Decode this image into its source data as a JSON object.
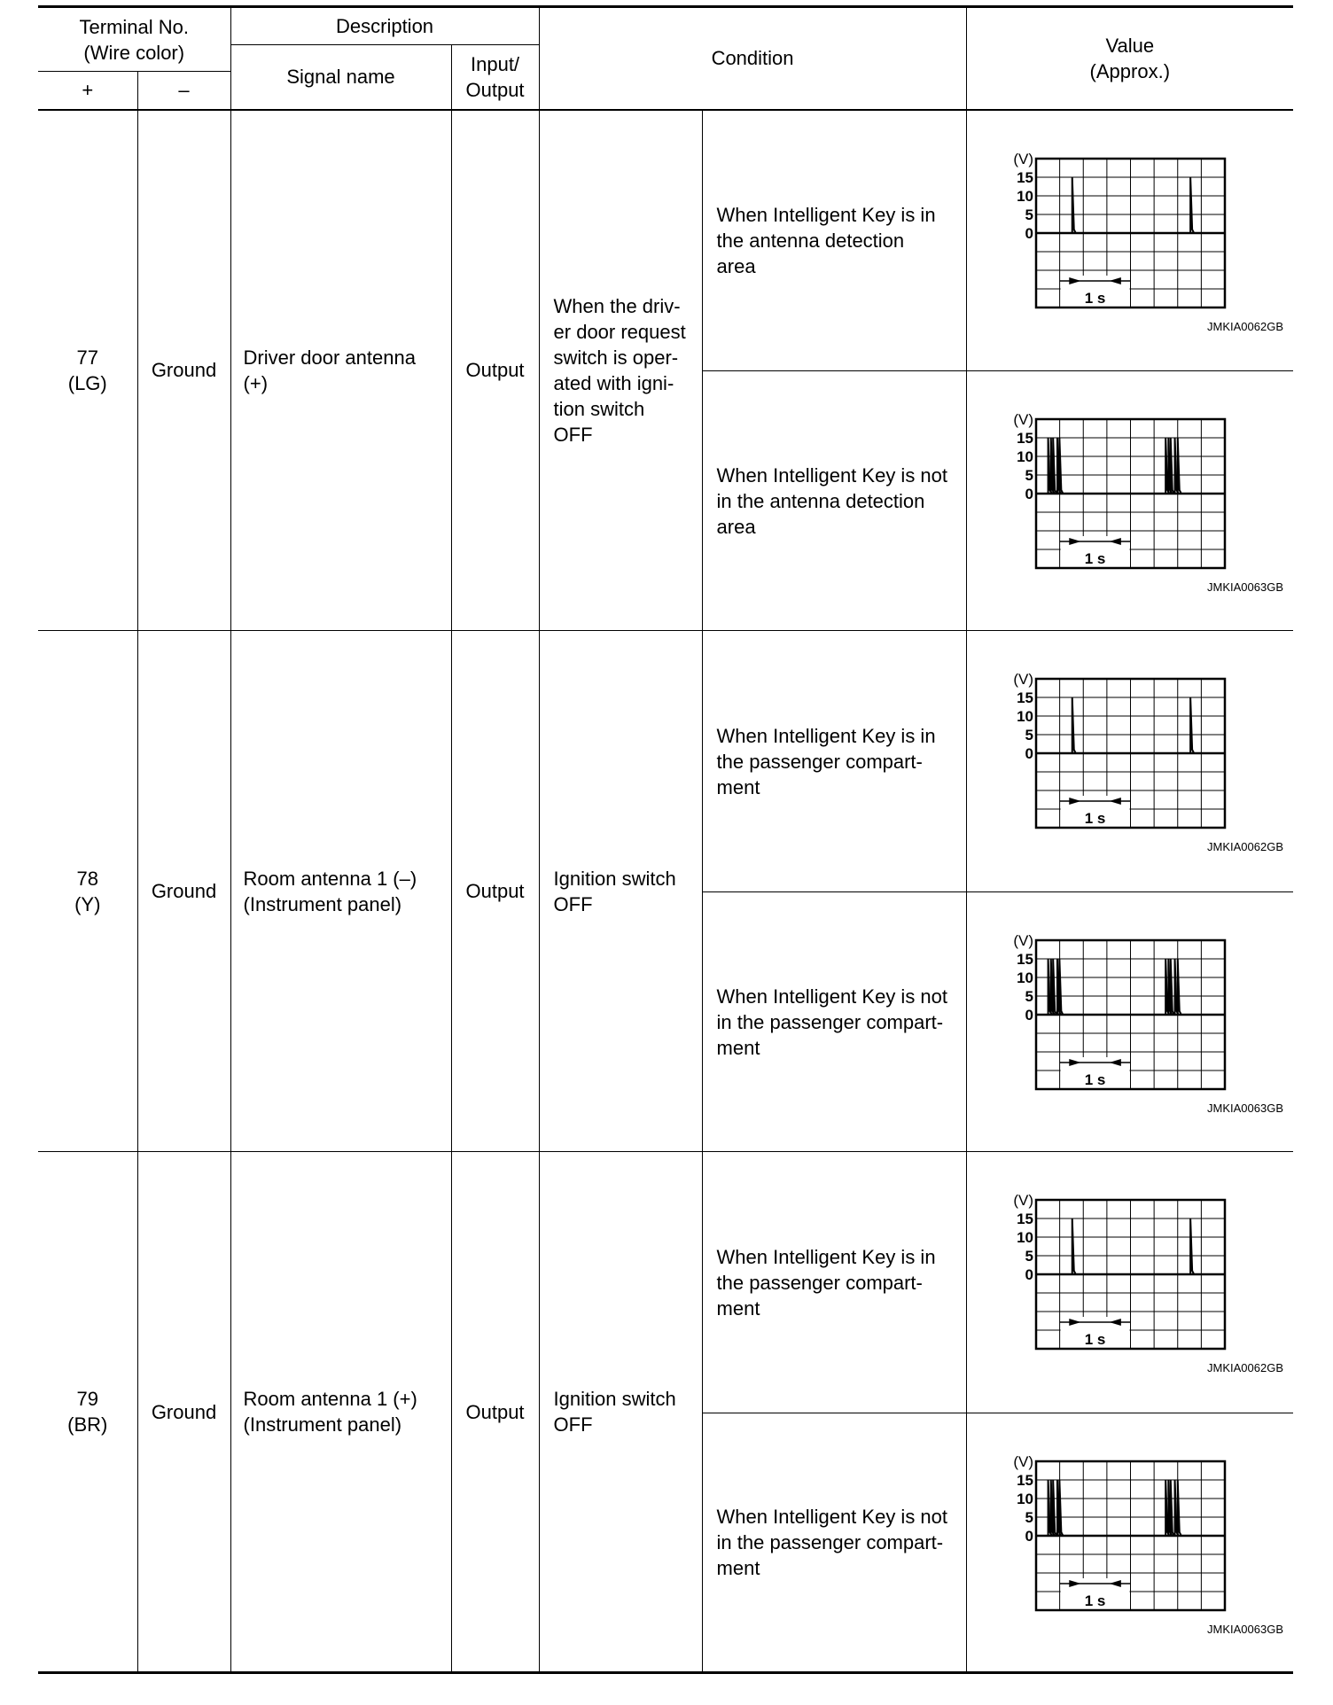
{
  "header": {
    "terminal": "Terminal No.\n(Wire color)",
    "plus": "+",
    "minus": "–",
    "description": "Description",
    "signal_name": "Signal name",
    "io": "Input/\nOutput",
    "condition": "Condition",
    "value": "Value\n(Approx.)"
  },
  "rows": [
    {
      "plus": "77\n(LG)",
      "minus": "Ground",
      "signal": "Driver door antenna\n(+)",
      "io": "Output",
      "condition": "When the driv-\ner door request\nswitch is oper-\nated with igni-\ntion switch\nOFF",
      "subs": [
        {
          "condition": "When Intelligent Key is in\nthe antenna detection\narea",
          "waveform": 0
        },
        {
          "condition": "When Intelligent Key is not\nin the antenna detection\narea",
          "waveform": 1
        }
      ]
    },
    {
      "plus": "78\n(Y)",
      "minus": "Ground",
      "signal": "Room antenna 1 (–)\n(Instrument panel)",
      "io": "Output",
      "condition": "Ignition switch\nOFF",
      "subs": [
        {
          "condition": "When Intelligent Key is in\nthe passenger compart-\nment",
          "waveform": 0
        },
        {
          "condition": "When Intelligent Key is not\nin the passenger compart-\nment",
          "waveform": 1
        }
      ]
    },
    {
      "plus": "79\n(BR)",
      "minus": "Ground",
      "signal": "Room antenna 1 (+)\n(Instrument panel)",
      "io": "Output",
      "condition": "Ignition switch\nOFF",
      "subs": [
        {
          "condition": "When Intelligent Key is in\nthe passenger compart-\nment",
          "waveform": 0
        },
        {
          "condition": "When Intelligent Key is not\nin the passenger compart-\nment",
          "waveform": 1
        }
      ]
    }
  ],
  "chart_data": [
    {
      "type": "line",
      "caption": "JMKIA0062GB",
      "ylabel": "(V)",
      "yticks": [
        "15",
        "10",
        "5",
        "0"
      ],
      "ylim": [
        -15,
        20
      ],
      "time_label": "1 s",
      "pulses_s": [
        0.51,
        2.18
      ],
      "peak_v": 15,
      "grid": true
    },
    {
      "type": "line",
      "caption": "JMKIA0063GB",
      "ylabel": "(V)",
      "yticks": [
        "15",
        "10",
        "5",
        "0"
      ],
      "ylim": [
        -15,
        20
      ],
      "time_label": "1 s",
      "pulses_s": [
        0.17,
        0.21,
        0.24,
        0.3,
        0.33,
        1.83,
        1.87,
        1.9,
        1.96,
        2.0
      ],
      "peak_v": 15,
      "grid": true
    }
  ]
}
